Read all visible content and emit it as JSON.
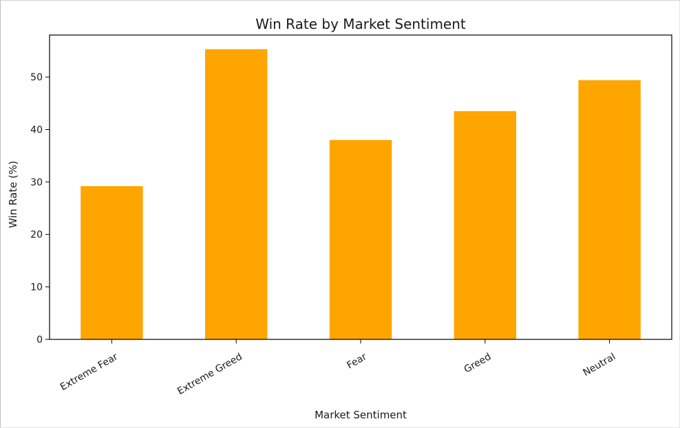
{
  "chart_data": {
    "type": "bar",
    "title": "Win Rate by Market Sentiment",
    "xlabel": "Market Sentiment",
    "ylabel": "Win Rate (%)",
    "categories": [
      "Extreme Fear",
      "Extreme Greed",
      "Fear",
      "Greed",
      "Neutral"
    ],
    "values": [
      29.2,
      55.3,
      38.0,
      43.5,
      49.4
    ],
    "yticks": [
      0,
      10,
      20,
      30,
      40,
      50
    ],
    "ylim": [
      0,
      58
    ],
    "bar_color": "#ffa500",
    "grid": false,
    "legend": null
  }
}
